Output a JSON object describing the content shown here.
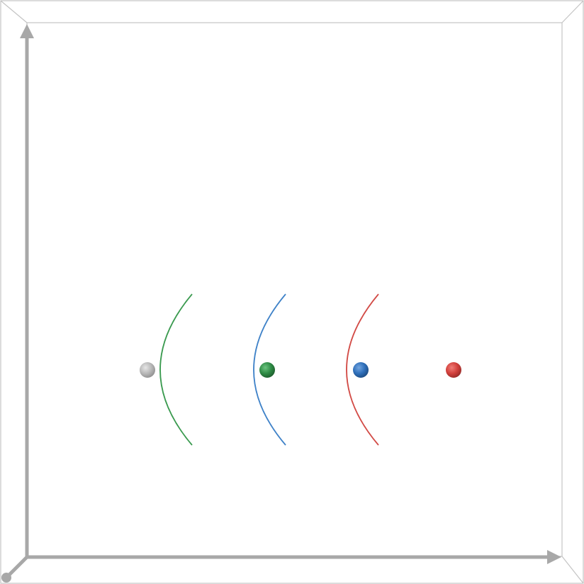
{
  "scene": {
    "type": "3d-diagram",
    "axes": {
      "color": "#a8a8a8",
      "labels": []
    },
    "frame_color": "#c4c4c4",
    "spheres": [
      {
        "name": "sphere-gray",
        "color": "#b8b8b8",
        "highlight": "#e6e6e6",
        "shade": "#8f8f8f"
      },
      {
        "name": "sphere-green",
        "color": "#2e8b45",
        "highlight": "#6cc47f",
        "shade": "#1d5c2c"
      },
      {
        "name": "sphere-blue",
        "color": "#2f6fba",
        "highlight": "#74a6e0",
        "shade": "#1c4a80"
      },
      {
        "name": "sphere-red",
        "color": "#d2403c",
        "highlight": "#f07d78",
        "shade": "#962a27"
      }
    ],
    "arcs": [
      {
        "name": "arc-green",
        "color": "#3a9a4f"
      },
      {
        "name": "arc-blue",
        "color": "#3f82c8"
      },
      {
        "name": "arc-red",
        "color": "#d24b46"
      }
    ]
  }
}
